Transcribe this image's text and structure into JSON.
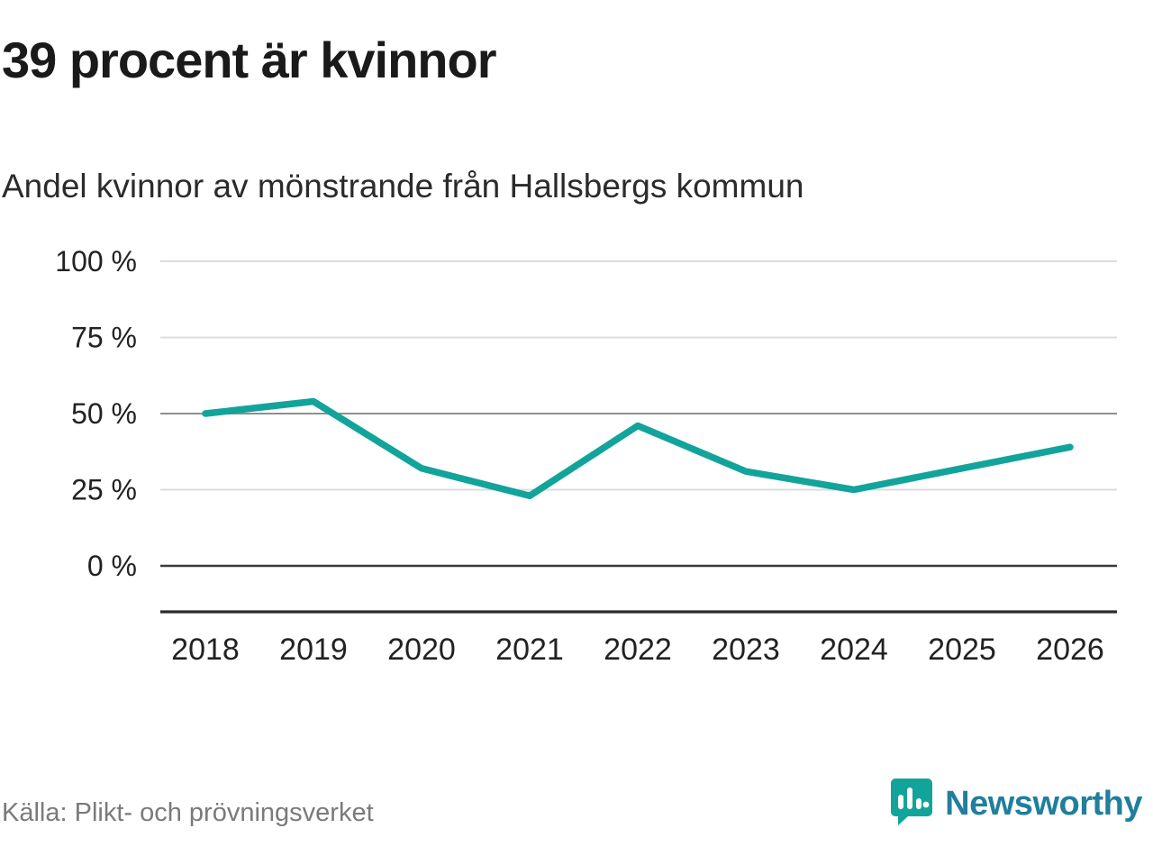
{
  "title": "39 procent är kvinnor",
  "subtitle": "Andel kvinnor av mönstrande från Hallsbergs kommun",
  "source": "Källa: Plikt- och prövningsverket",
  "brand": {
    "name": "Newsworthy"
  },
  "colors": {
    "line": "#12a49b",
    "axis": "#2b2b2b",
    "grid_light": "#dcdcdc",
    "grid_mid": "#8f8f8f",
    "grid_zero": "#3a3a3a",
    "tick_text": "#222222",
    "brand_icon": "#12a49b",
    "brand_text": "#1f7f9c"
  },
  "chart_data": {
    "type": "line",
    "title": "39 procent är kvinnor",
    "subtitle": "Andel kvinnor av mönstrande från Hallsbergs kommun",
    "x": [
      2018,
      2019,
      2020,
      2021,
      2022,
      2023,
      2024,
      2025,
      2026
    ],
    "series": [
      {
        "name": "Andel kvinnor av mönstrande",
        "values": [
          50,
          54,
          32,
          23,
          46,
          31,
          25,
          32,
          39
        ]
      }
    ],
    "xlabel": "",
    "ylabel": "",
    "ylim": [
      0,
      100
    ],
    "yticks": [
      0,
      25,
      50,
      75,
      100
    ],
    "ytick_suffix": " %",
    "grid": true,
    "legend_position": "none"
  }
}
